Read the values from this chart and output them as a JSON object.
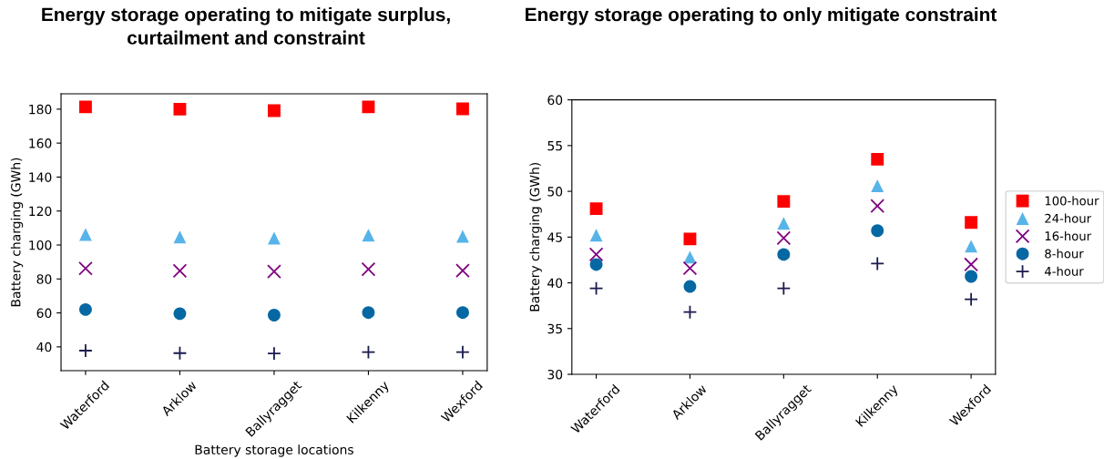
{
  "chart_data": [
    {
      "type": "scatter",
      "title": "Energy storage operating to mitigate surplus,\ncurtailment and constraint",
      "xlabel": "Battery storage locations",
      "ylabel": "Battery charging (GWh)",
      "categories": [
        "Waterford",
        "Arklow",
        "Ballyragget",
        "Kilkenny",
        "Wexford"
      ],
      "ylim": [
        26,
        189
      ],
      "yticks": [
        40,
        60,
        80,
        100,
        120,
        140,
        160,
        180
      ],
      "grid": false,
      "legend": false,
      "series": [
        {
          "color": "#ff0000",
          "marker": "square",
          "values": [
            181.3,
            180.0,
            179.1,
            181.3,
            180.2
          ]
        },
        {
          "color": "#56b4e9",
          "marker": "triangle",
          "values": [
            106.2,
            104.7,
            104.0,
            105.8,
            105.1
          ]
        },
        {
          "color": "#800080",
          "marker": "cross",
          "values": [
            86.2,
            84.8,
            84.4,
            85.7,
            84.9
          ]
        },
        {
          "color": "#0568a3",
          "marker": "circle",
          "values": [
            62.0,
            59.6,
            58.7,
            60.2,
            60.2
          ]
        },
        {
          "color": "#1b1b4f",
          "marker": "plus",
          "values": [
            37.8,
            36.3,
            36.1,
            36.9,
            36.9
          ]
        }
      ]
    },
    {
      "type": "scatter",
      "title": "Energy storage operating to only mitigate constraint",
      "ylabel": "Battery charging (GWh)",
      "categories": [
        "Waterford",
        "Arklow",
        "Ballyragget",
        "Kilkenny",
        "Wexford"
      ],
      "ylim": [
        30,
        60
      ],
      "yticks": [
        30,
        35,
        40,
        45,
        50,
        55,
        60
      ],
      "grid": false,
      "legend": "right",
      "series": [
        {
          "name": "100-hour",
          "color": "#ff0000",
          "marker": "square",
          "values": [
            48.1,
            44.8,
            48.9,
            53.5,
            46.6
          ]
        },
        {
          "name": "24-hour",
          "color": "#56b4e9",
          "marker": "triangle",
          "values": [
            45.2,
            42.8,
            46.5,
            50.6,
            44.0
          ]
        },
        {
          "name": "16-hour",
          "color": "#800080",
          "marker": "cross",
          "values": [
            43.1,
            41.6,
            44.9,
            48.4,
            42.0
          ]
        },
        {
          "name": "8-hour",
          "color": "#0568a3",
          "marker": "circle",
          "values": [
            42.0,
            39.6,
            43.1,
            45.7,
            40.7
          ]
        },
        {
          "name": "4-hour",
          "color": "#1b1b4f",
          "marker": "plus",
          "values": [
            39.4,
            36.8,
            39.4,
            42.1,
            38.2
          ]
        }
      ]
    }
  ]
}
